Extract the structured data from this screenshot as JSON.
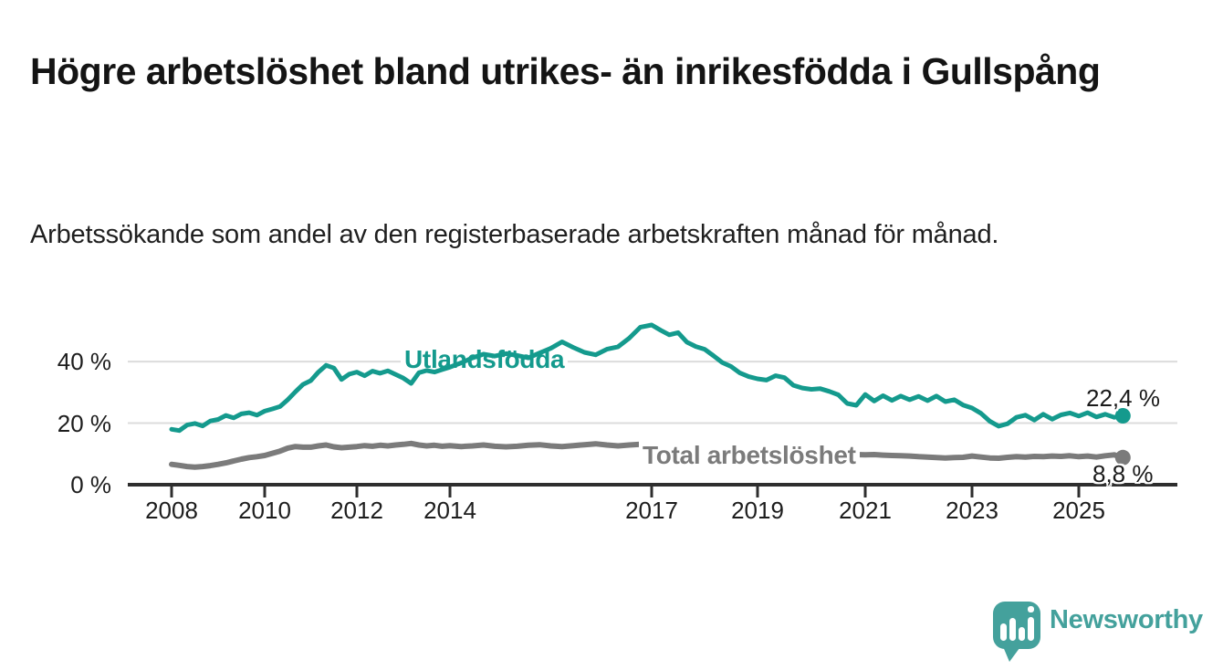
{
  "header": {
    "title": "Högre arbetslöshet bland utrikes- än inrikesfödda i Gullspång",
    "subtitle": "Arbetssökande som andel av den registerbaserade arbetskraften månad för månad."
  },
  "chart_data": {
    "type": "line",
    "title": "Högre arbetslöshet bland utrikes- än inrikesfödda i Gullspång",
    "subtitle": "Arbetssökande som andel av den registerbaserade arbetskraften månad för månad.",
    "unit": "%",
    "grid": "horizontal-gridlines",
    "legend": "inline-series-labels",
    "ylim": [
      0,
      55
    ],
    "x_start_year": 2008,
    "x_interval_months": 2,
    "x_end": "2025 (autumn)",
    "y_ticks": [
      {
        "value": 0,
        "label": "0 %"
      },
      {
        "value": 20,
        "label": "20 %"
      },
      {
        "value": 40,
        "label": "40 %"
      }
    ],
    "x_ticks": [
      {
        "year": 2008,
        "label": "2008"
      },
      {
        "year": 2010,
        "label": "2010"
      },
      {
        "year": 2012,
        "label": "2012"
      },
      {
        "year": 2014,
        "label": "2014"
      },
      {
        "year": 2017,
        "label": "2017"
      },
      {
        "year": 2019,
        "label": "2019"
      },
      {
        "year": 2021,
        "label": "2021"
      },
      {
        "year": 2023,
        "label": "2023"
      },
      {
        "year": 2025,
        "label": "2025"
      }
    ],
    "series": [
      {
        "name": "Utlandsfödda",
        "color": "#149a8d",
        "end_label": "22,4 %",
        "end_value": 22.4,
        "values": [
          18.0,
          17.6,
          19.4,
          19.9,
          19.1,
          20.7,
          21.2,
          22.5,
          21.7,
          23.0,
          23.4,
          22.6,
          23.9,
          24.6,
          25.4,
          27.6,
          30.2,
          32.6,
          33.8,
          36.6,
          38.8,
          37.9,
          34.2,
          35.9,
          36.6,
          35.4,
          36.9,
          36.2,
          37.0,
          35.8,
          34.6,
          32.9,
          36.4,
          37.1,
          36.6,
          37.4,
          38.2,
          39.6,
          41.2,
          42.4,
          41.8,
          42.6,
          42.0,
          41.2,
          42.8,
          44.3,
          46.4,
          44.6,
          43.0,
          42.2,
          44.0,
          44.8,
          47.6,
          51.2,
          51.9,
          50.2,
          48.7,
          49.4,
          46.3,
          44.9,
          44.0,
          41.9,
          39.7,
          38.4,
          36.3,
          35.1,
          34.4,
          34.0,
          35.4,
          34.8,
          32.3,
          31.4,
          31.0,
          31.2,
          30.3,
          29.2,
          26.4,
          25.8,
          29.3,
          27.2,
          28.9,
          27.4,
          28.8,
          27.6,
          28.7,
          27.3,
          28.8,
          27.0,
          27.6,
          25.9,
          24.9,
          23.2,
          20.6,
          19.0,
          19.8,
          21.9,
          22.6,
          21.0,
          22.9,
          21.3,
          22.7,
          23.3,
          22.3,
          23.4,
          22.0,
          22.9,
          21.9,
          22.4
        ]
      },
      {
        "name": "Total arbetslöshet",
        "color": "#7b7b7b",
        "end_label": "8,8 %",
        "end_value": 8.8,
        "values": [
          6.6,
          6.3,
          5.9,
          5.7,
          5.9,
          6.2,
          6.6,
          7.1,
          7.7,
          8.3,
          8.8,
          9.1,
          9.5,
          10.2,
          10.9,
          11.9,
          12.4,
          12.2,
          12.2,
          12.6,
          12.9,
          12.3,
          12.0,
          12.2,
          12.4,
          12.7,
          12.5,
          12.8,
          12.6,
          12.9,
          13.1,
          13.4,
          12.9,
          12.6,
          12.8,
          12.5,
          12.7,
          12.4,
          12.6,
          12.9,
          12.5,
          12.3,
          12.5,
          12.8,
          13.0,
          12.6,
          12.4,
          12.7,
          13.0,
          13.3,
          12.9,
          12.6,
          12.9,
          13.1,
          13.3,
          13.0,
          12.6,
          12.2,
          11.9,
          11.6,
          11.3,
          11.1,
          10.9,
          10.7,
          10.5,
          10.3,
          10.2,
          10.0,
          9.9,
          9.8,
          9.9,
          10.0,
          10.0,
          10.2,
          10.4,
          10.2,
          10.0,
          9.8,
          9.7,
          9.8,
          9.6,
          9.5,
          9.4,
          9.3,
          9.1,
          9.0,
          8.8,
          8.7,
          8.8,
          8.9,
          9.3,
          9.0,
          8.7,
          8.6,
          8.9,
          9.1,
          9.0,
          9.2,
          9.1,
          9.3,
          9.2,
          9.4,
          9.1,
          9.3,
          9.0,
          9.4,
          9.7,
          8.8
        ]
      }
    ],
    "colors": {
      "utlandsfodda": "#149a8d",
      "total": "#7b7b7b",
      "gridline": "#dcdcdc",
      "axis": "#2e2e2e"
    }
  },
  "footer": {
    "brand": "Newsworthy"
  }
}
